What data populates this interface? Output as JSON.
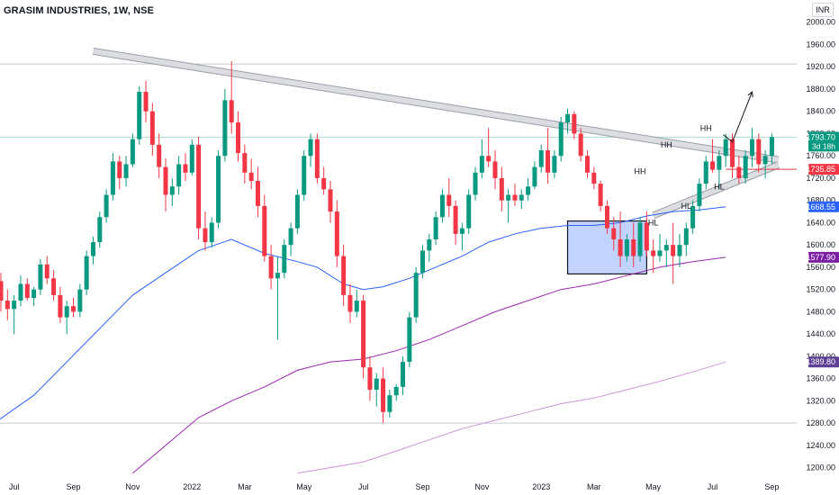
{
  "header": {
    "title": "GRASIM INDUSTRIES, 1W, NSE",
    "currency": "INR"
  },
  "chart_data": {
    "type": "candlestick",
    "ylim": [
      1180,
      2040
    ],
    "y_ticks": [
      1200,
      1240,
      1280,
      1320,
      1360,
      1400,
      1440,
      1480,
      1520,
      1560,
      1600,
      1640,
      1680,
      1720,
      1760,
      1800,
      1840,
      1880,
      1920,
      1960,
      2000
    ],
    "x_labels": [
      {
        "label": "Jul",
        "week": 2
      },
      {
        "label": "Sep",
        "week": 11
      },
      {
        "label": "Nov",
        "week": 20
      },
      {
        "label": "2022",
        "week": 29
      },
      {
        "label": "Mar",
        "week": 37
      },
      {
        "label": "May",
        "week": 46
      },
      {
        "label": "Jul",
        "week": 55
      },
      {
        "label": "Sep",
        "week": 64
      },
      {
        "label": "Nov",
        "week": 73
      },
      {
        "label": "2023",
        "week": 82
      },
      {
        "label": "Mar",
        "week": 90
      },
      {
        "label": "May",
        "week": 99
      },
      {
        "label": "Jul",
        "week": 108
      },
      {
        "label": "Sep",
        "week": 117
      }
    ],
    "candles": [
      [
        1535,
        1550,
        1480,
        1500
      ],
      [
        1500,
        1520,
        1465,
        1485
      ],
      [
        1485,
        1510,
        1440,
        1500
      ],
      [
        1500,
        1545,
        1490,
        1530
      ],
      [
        1530,
        1540,
        1500,
        1505
      ],
      [
        1505,
        1525,
        1490,
        1520
      ],
      [
        1520,
        1575,
        1510,
        1565
      ],
      [
        1565,
        1580,
        1530,
        1540
      ],
      [
        1540,
        1555,
        1500,
        1510
      ],
      [
        1510,
        1525,
        1460,
        1470
      ],
      [
        1470,
        1500,
        1440,
        1490
      ],
      [
        1490,
        1505,
        1470,
        1480
      ],
      [
        1480,
        1530,
        1470,
        1520
      ],
      [
        1520,
        1590,
        1510,
        1580
      ],
      [
        1580,
        1615,
        1565,
        1605
      ],
      [
        1605,
        1660,
        1595,
        1650
      ],
      [
        1650,
        1700,
        1640,
        1690
      ],
      [
        1690,
        1765,
        1680,
        1750
      ],
      [
        1750,
        1760,
        1700,
        1720
      ],
      [
        1720,
        1760,
        1705,
        1745
      ],
      [
        1745,
        1800,
        1740,
        1790
      ],
      [
        1790,
        1885,
        1780,
        1875
      ],
      [
        1875,
        1895,
        1820,
        1840
      ],
      [
        1840,
        1855,
        1760,
        1780
      ],
      [
        1780,
        1800,
        1720,
        1740
      ],
      [
        1740,
        1755,
        1660,
        1690
      ],
      [
        1690,
        1720,
        1670,
        1705
      ],
      [
        1705,
        1760,
        1690,
        1745
      ],
      [
        1745,
        1765,
        1715,
        1730
      ],
      [
        1730,
        1790,
        1725,
        1780
      ],
      [
        1780,
        1795,
        1610,
        1630
      ],
      [
        1630,
        1660,
        1590,
        1605
      ],
      [
        1605,
        1650,
        1595,
        1640
      ],
      [
        1640,
        1770,
        1630,
        1760
      ],
      [
        1760,
        1880,
        1750,
        1860
      ],
      [
        1860,
        1930,
        1800,
        1820
      ],
      [
        1820,
        1840,
        1750,
        1765
      ],
      [
        1765,
        1780,
        1710,
        1730
      ],
      [
        1730,
        1755,
        1700,
        1715
      ],
      [
        1715,
        1740,
        1650,
        1670
      ],
      [
        1670,
        1690,
        1570,
        1580
      ],
      [
        1580,
        1600,
        1520,
        1540
      ],
      [
        1540,
        1580,
        1430,
        1550
      ],
      [
        1550,
        1610,
        1540,
        1600
      ],
      [
        1600,
        1640,
        1580,
        1630
      ],
      [
        1630,
        1700,
        1620,
        1690
      ],
      [
        1690,
        1770,
        1680,
        1760
      ],
      [
        1760,
        1800,
        1740,
        1790
      ],
      [
        1790,
        1800,
        1710,
        1720
      ],
      [
        1720,
        1740,
        1690,
        1700
      ],
      [
        1700,
        1715,
        1640,
        1660
      ],
      [
        1660,
        1680,
        1560,
        1580
      ],
      [
        1580,
        1600,
        1490,
        1510
      ],
      [
        1510,
        1530,
        1460,
        1480
      ],
      [
        1480,
        1520,
        1470,
        1500
      ],
      [
        1500,
        1510,
        1360,
        1380
      ],
      [
        1380,
        1400,
        1320,
        1340
      ],
      [
        1340,
        1370,
        1310,
        1360
      ],
      [
        1360,
        1380,
        1280,
        1300
      ],
      [
        1300,
        1340,
        1290,
        1330
      ],
      [
        1330,
        1350,
        1320,
        1345
      ],
      [
        1345,
        1400,
        1330,
        1390
      ],
      [
        1390,
        1480,
        1380,
        1470
      ],
      [
        1470,
        1560,
        1460,
        1550
      ],
      [
        1550,
        1600,
        1540,
        1590
      ],
      [
        1590,
        1620,
        1570,
        1610
      ],
      [
        1610,
        1660,
        1600,
        1650
      ],
      [
        1650,
        1700,
        1640,
        1690
      ],
      [
        1690,
        1720,
        1650,
        1670
      ],
      [
        1670,
        1680,
        1600,
        1620
      ],
      [
        1620,
        1640,
        1590,
        1630
      ],
      [
        1630,
        1700,
        1620,
        1690
      ],
      [
        1690,
        1740,
        1680,
        1730
      ],
      [
        1730,
        1790,
        1720,
        1760
      ],
      [
        1760,
        1810,
        1740,
        1750
      ],
      [
        1750,
        1770,
        1700,
        1720
      ],
      [
        1720,
        1740,
        1660,
        1680
      ],
      [
        1680,
        1700,
        1640,
        1690
      ],
      [
        1690,
        1710,
        1670,
        1680
      ],
      [
        1680,
        1700,
        1665,
        1690
      ],
      [
        1690,
        1720,
        1680,
        1705
      ],
      [
        1705,
        1750,
        1700,
        1740
      ],
      [
        1740,
        1780,
        1730,
        1770
      ],
      [
        1770,
        1810,
        1710,
        1730
      ],
      [
        1730,
        1770,
        1720,
        1760
      ],
      [
        1760,
        1830,
        1750,
        1820
      ],
      [
        1820,
        1845,
        1800,
        1835
      ],
      [
        1835,
        1840,
        1790,
        1800
      ],
      [
        1800,
        1810,
        1750,
        1760
      ],
      [
        1760,
        1770,
        1720,
        1730
      ],
      [
        1730,
        1740,
        1700,
        1710
      ],
      [
        1710,
        1715,
        1660,
        1670
      ],
      [
        1670,
        1680,
        1620,
        1630
      ],
      [
        1630,
        1650,
        1590,
        1610
      ],
      [
        1610,
        1660,
        1560,
        1580
      ],
      [
        1580,
        1620,
        1570,
        1610
      ],
      [
        1610,
        1640,
        1560,
        1580
      ],
      [
        1580,
        1650,
        1570,
        1640
      ],
      [
        1640,
        1660,
        1580,
        1590
      ],
      [
        1590,
        1610,
        1550,
        1580
      ],
      [
        1580,
        1620,
        1570,
        1590
      ],
      [
        1590,
        1610,
        1560,
        1600
      ],
      [
        1600,
        1640,
        1530,
        1580
      ],
      [
        1580,
        1620,
        1560,
        1600
      ],
      [
        1600,
        1640,
        1580,
        1630
      ],
      [
        1630,
        1680,
        1620,
        1670
      ],
      [
        1670,
        1720,
        1660,
        1710
      ],
      [
        1710,
        1760,
        1700,
        1750
      ],
      [
        1750,
        1790,
        1730,
        1735
      ],
      [
        1735,
        1770,
        1700,
        1760
      ],
      [
        1760,
        1800,
        1740,
        1790
      ],
      [
        1790,
        1800,
        1720,
        1740
      ],
      [
        1740,
        1760,
        1710,
        1720
      ],
      [
        1720,
        1770,
        1710,
        1760
      ],
      [
        1760,
        1810,
        1740,
        1790
      ],
      [
        1790,
        1800,
        1730,
        1745
      ],
      [
        1745,
        1770,
        1720,
        1760
      ],
      [
        1760,
        1800,
        1745,
        1793.7
      ]
    ],
    "moving_averages": [
      {
        "color": "#2962ff",
        "points": [
          [
            -1,
            1280
          ],
          [
            5,
            1330
          ],
          [
            10,
            1390
          ],
          [
            15,
            1450
          ],
          [
            20,
            1510
          ],
          [
            25,
            1550
          ],
          [
            30,
            1590
          ],
          [
            35,
            1610
          ],
          [
            40,
            1585
          ],
          [
            45,
            1570
          ],
          [
            48,
            1560
          ],
          [
            52,
            1530
          ],
          [
            55,
            1520
          ],
          [
            58,
            1525
          ],
          [
            62,
            1540
          ],
          [
            66,
            1560
          ],
          [
            70,
            1580
          ],
          [
            74,
            1605
          ],
          [
            78,
            1620
          ],
          [
            82,
            1630
          ],
          [
            86,
            1635
          ],
          [
            90,
            1635
          ],
          [
            94,
            1640
          ],
          [
            98,
            1652
          ],
          [
            102,
            1660
          ],
          [
            106,
            1663
          ],
          [
            110,
            1668.55
          ]
        ]
      },
      {
        "color": "#9c27b0",
        "points": [
          [
            20,
            1190
          ],
          [
            25,
            1240
          ],
          [
            30,
            1290
          ],
          [
            35,
            1320
          ],
          [
            40,
            1345
          ],
          [
            45,
            1375
          ],
          [
            50,
            1390
          ],
          [
            55,
            1395
          ],
          [
            60,
            1410
          ],
          [
            65,
            1430
          ],
          [
            70,
            1455
          ],
          [
            75,
            1480
          ],
          [
            80,
            1500
          ],
          [
            85,
            1520
          ],
          [
            90,
            1530
          ],
          [
            95,
            1545
          ],
          [
            100,
            1560
          ],
          [
            105,
            1570
          ],
          [
            110,
            1577.9
          ]
        ]
      },
      {
        "color": "#ce93d8",
        "points": [
          [
            45,
            1190
          ],
          [
            50,
            1200
          ],
          [
            55,
            1210
          ],
          [
            60,
            1230
          ],
          [
            65,
            1250
          ],
          [
            70,
            1270
          ],
          [
            75,
            1285
          ],
          [
            80,
            1300
          ],
          [
            85,
            1315
          ],
          [
            90,
            1325
          ],
          [
            95,
            1340
          ],
          [
            100,
            1355
          ],
          [
            105,
            1372
          ],
          [
            110,
            1389.8
          ]
        ]
      }
    ],
    "horizontal_lines": [
      {
        "price": 1925,
        "color": "#c9cbd1"
      },
      {
        "price": 1793.7,
        "color": "#a9dcd1"
      },
      {
        "price": 1280,
        "color": "#c9cbd1"
      }
    ],
    "support_line": {
      "price": 1735.85,
      "from_week": 110,
      "color": "#f23645"
    },
    "resistance_trendline": {
      "from": [
        14,
        1948
      ],
      "to": [
        118,
        1753
      ]
    },
    "rising_trendline": {
      "from": [
        99,
        1653
      ],
      "to": [
        118,
        1744
      ]
    },
    "consolidation_box": {
      "from_week": 86,
      "to_week": 98,
      "high": 1643,
      "low": 1548
    },
    "projection_arrow": {
      "from": [
        111,
        1785
      ],
      "to": [
        114,
        1875
      ]
    },
    "annotations": [
      {
        "text": "HH",
        "week": 97,
        "price": 1727
      },
      {
        "text": "HH",
        "week": 101,
        "price": 1775
      },
      {
        "text": "HH",
        "week": 107,
        "price": 1805
      },
      {
        "text": "HL",
        "week": 99,
        "price": 1635
      },
      {
        "text": "HL",
        "week": 104,
        "price": 1665
      },
      {
        "text": "HL",
        "week": 109,
        "price": 1700
      }
    ],
    "price_labels": [
      {
        "text": "1793.70",
        "subtext": "3d 18h",
        "price": 1793.7,
        "color": "#089981"
      },
      {
        "text": "1735.85",
        "price": 1735.85,
        "color": "#f23645"
      },
      {
        "text": "1668.55",
        "price": 1668.55,
        "color": "#2962ff"
      },
      {
        "text": "1577.90",
        "price": 1577.9,
        "color": "#7b1fa2"
      },
      {
        "text": "1389.80",
        "price": 1389.8,
        "color": "#5d3f94"
      }
    ]
  }
}
